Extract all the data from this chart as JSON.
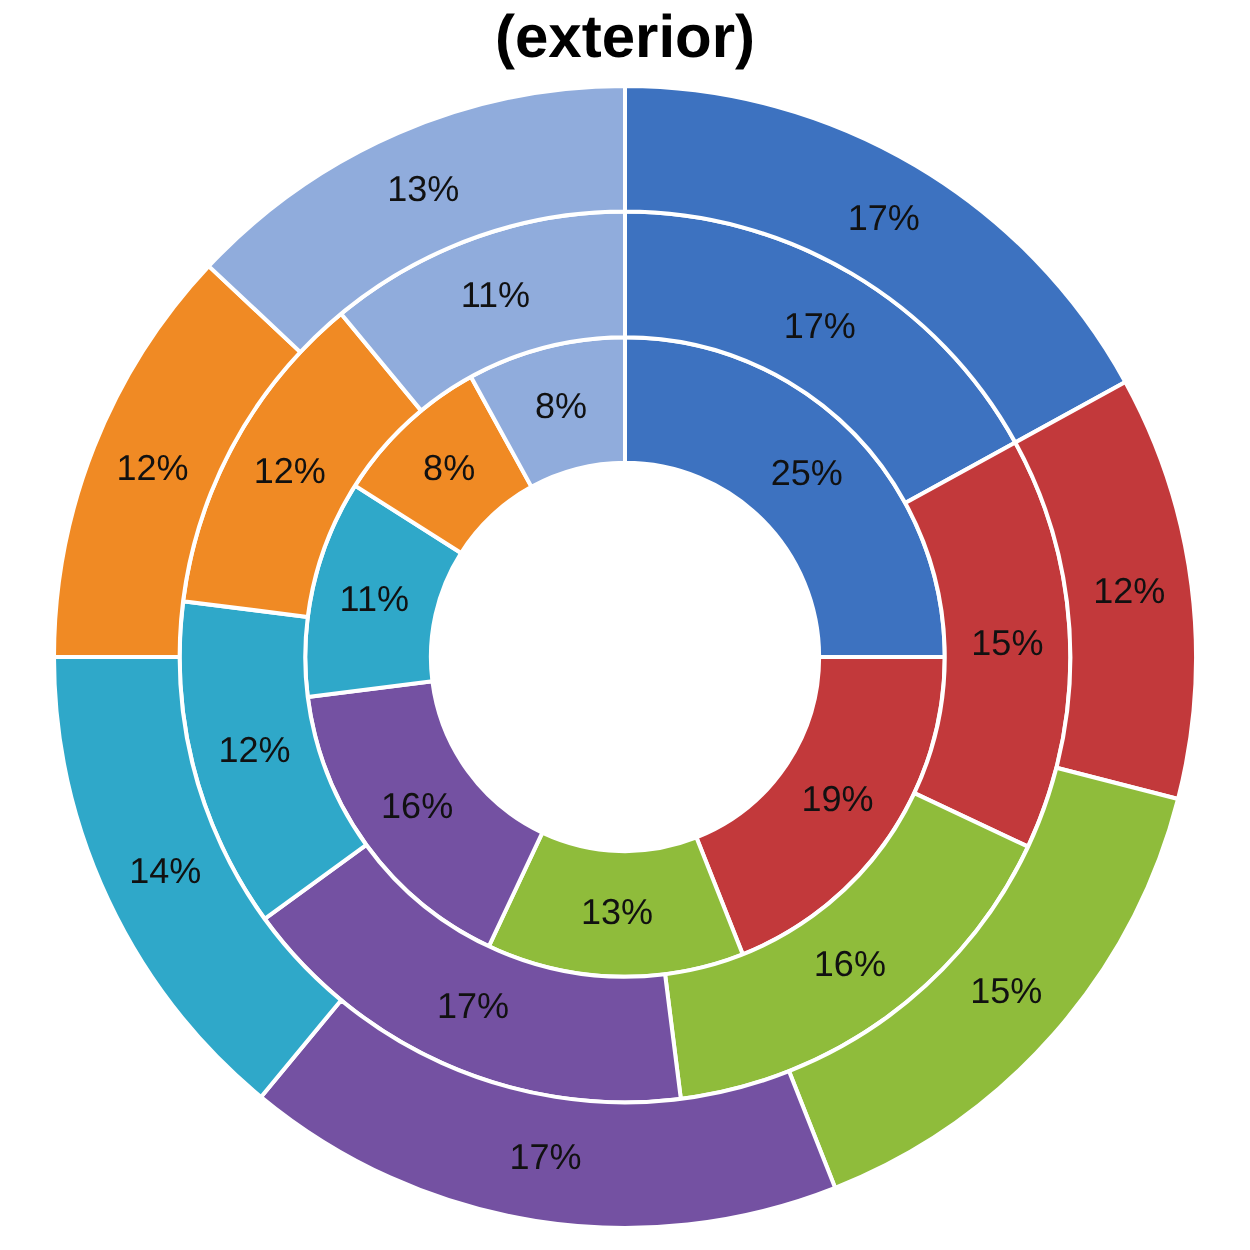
{
  "chart_data": {
    "type": "donut",
    "title": "(exterior)",
    "categories": [
      null,
      null,
      null,
      null,
      null,
      null,
      null
    ],
    "colors": [
      "#3d72c0",
      "#c2393b",
      "#8fbc3b",
      "#7451a2",
      "#2fa8c9",
      "#f08a24",
      "#90acdc"
    ],
    "series": [
      {
        "values": [
          17,
          12,
          15,
          17,
          14,
          12,
          13
        ],
        "value_labels": [
          "17%",
          "12%",
          "15%",
          "17%",
          "14%",
          "12%",
          "13%"
        ]
      },
      {
        "values": [
          17,
          15,
          16,
          17,
          12,
          12,
          11
        ],
        "value_labels": [
          "17%",
          "15%",
          "16%",
          "17%",
          "12%",
          "12%",
          "11%"
        ]
      },
      {
        "values": [
          25,
          19,
          13,
          16,
          11,
          8,
          8
        ],
        "value_labels": [
          "25%",
          "19%",
          "13%",
          "16%",
          "11%",
          "8%",
          "8%"
        ]
      }
    ],
    "legend": false
  }
}
